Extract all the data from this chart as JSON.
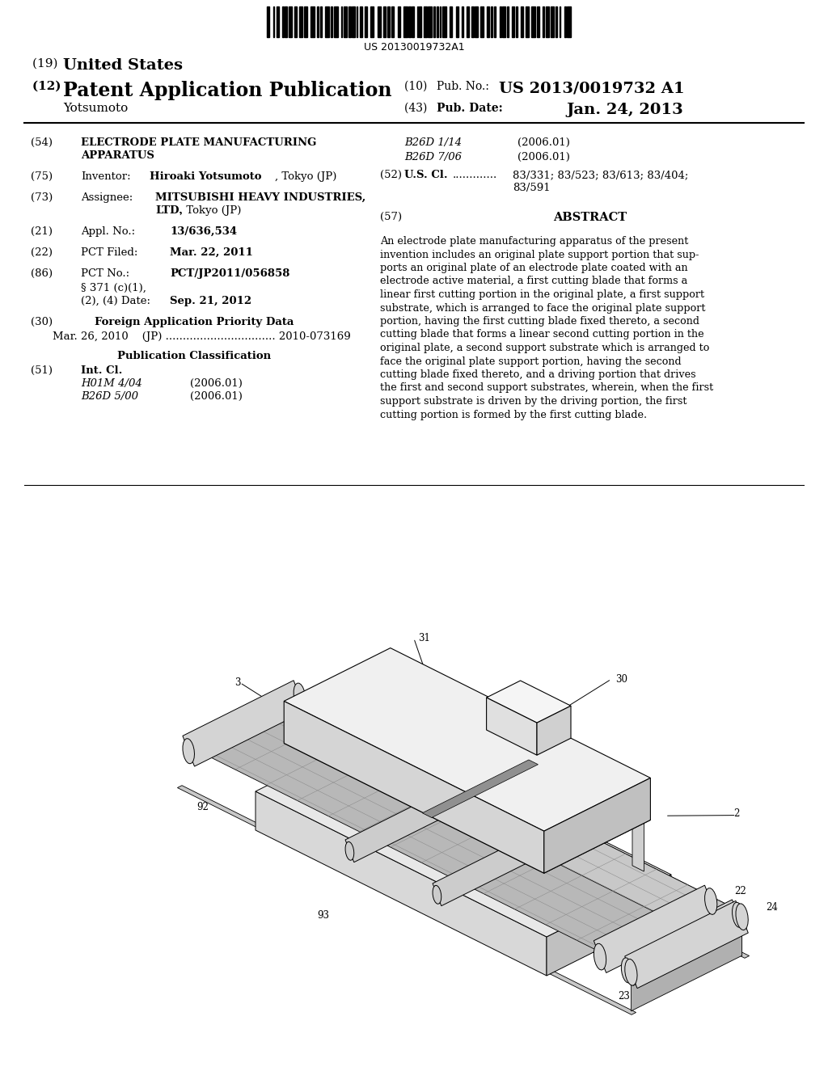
{
  "bg": "#ffffff",
  "barcode_text": "US 20130019732A1",
  "header": {
    "title19": "(19) United States",
    "title12_left": "(12) Patent Application Publication",
    "title12_num_label": "(10) Pub. No.:",
    "title12_num": "US 2013/0019732 A1",
    "author": "Yotsumoto",
    "date_label": "(43) Pub. Date:",
    "date": "Jan. 24, 2013"
  },
  "left_col": [
    {
      "tag": "(54)",
      "label": "",
      "value": "ELECTRODE PLATE MANUFACTURING\nAPPARATUS",
      "bold_value": true
    },
    {
      "tag": "(75)",
      "label": "Inventor:",
      "value": "Hiroaki Yotsumoto",
      "value2": ", Tokyo (JP)",
      "bold_value": true
    },
    {
      "tag": "(73)",
      "label": "Assignee:",
      "value": "MITSUBISHI HEAVY INDUSTRIES,\nLTD.",
      "value2": ", Tokyo (JP)",
      "bold_value": true
    },
    {
      "tag": "(21)",
      "label": "Appl. No.:",
      "value": "13/636,534",
      "bold_value": false
    },
    {
      "tag": "(22)",
      "label": "PCT Filed:",
      "value": "Mar. 22, 2011",
      "bold_value": true
    },
    {
      "tag": "(86)",
      "label": "PCT No.:",
      "value": "PCT/JP2011/056858",
      "bold_value": true
    },
    {
      "tag": "",
      "label": "§ 371 (c)(1),",
      "value": "",
      "bold_value": false
    },
    {
      "tag": "",
      "label": "(2), (4) Date:",
      "value": "Sep. 21, 2012",
      "bold_value": true
    },
    {
      "tag": "(30)",
      "label": "Foreign Application Priority Data",
      "value": "",
      "bold_value": true,
      "center_label": true
    },
    {
      "tag": "",
      "label": "Mar. 26, 2010    (JP) ................................ 2010-073169",
      "value": "",
      "bold_value": false
    },
    {
      "tag": "",
      "label": "Publication Classification",
      "value": "",
      "bold_value": true,
      "center_label": true
    },
    {
      "tag": "(51)",
      "label": "Int. Cl.",
      "value": "",
      "bold_value": true
    },
    {
      "tag": "",
      "label": "H01M 4/04",
      "value": "(2006.01)",
      "bold_value": false,
      "italic_label": true
    },
    {
      "tag": "",
      "label": "B26D 5/00",
      "value": "(2006.01)",
      "bold_value": false,
      "italic_label": true
    }
  ],
  "right_col_class": [
    {
      "label": "B26D 1/14",
      "value": "(2006.01)",
      "italic_label": true
    },
    {
      "label": "B26D 7/06",
      "value": "(2006.01)",
      "italic_label": true
    },
    {
      "tag": "(52)",
      "label": "U.S. Cl.",
      "dots": "............. ",
      "value": "83/331; 83/523; 83/613; 83/404;\n                83/591",
      "bold_value": true
    }
  ],
  "abstract_header": "(57)             ABSTRACT",
  "abstract": "An electrode plate manufacturing apparatus of the present invention includes an original plate support portion that sup-\nports an original plate of an electrode plate coated with an\nelectrode active material, a first cutting blade that forms a\nlinear first cutting portion in the original plate, a first support\nsubstrate, which is arranged to face the original plate support\nportion, having the first cutting blade fixed thereto, a second\ncutting blade that forms a linear second cutting portion in the\noriginal plate, a second support substrate which is arranged to\nface the original plate support portion, having the second\ncutting blade fixed thereto, and a driving portion that drives\nthe first and second support substrates, wherein, when the first\nsupport substrate is driven by the driving portion, the first\ncutting portion is formed by the first cutting blade."
}
